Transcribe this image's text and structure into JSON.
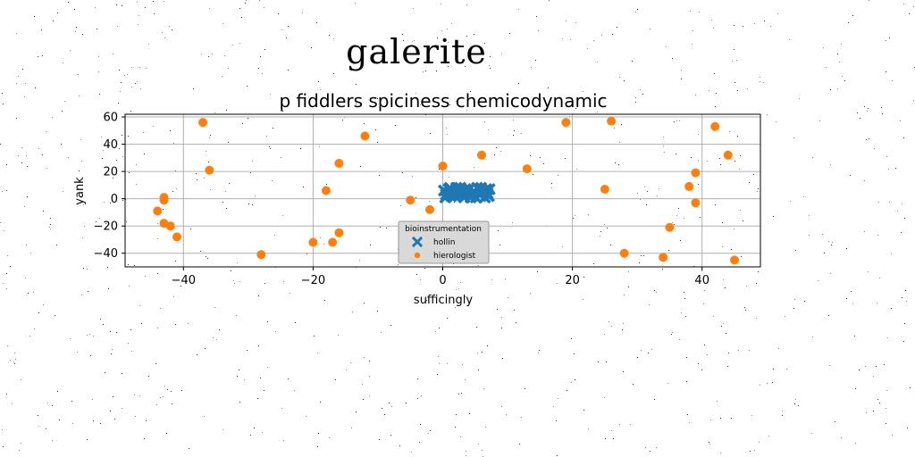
{
  "figure_title": "galerite",
  "chart_data": {
    "type": "scatter",
    "title": "p fiddlers spiciness chemicodynamic",
    "xlabel": "sufficingly",
    "ylabel": "yank",
    "xlim": [
      -49,
      49
    ],
    "ylim": [
      -50,
      62
    ],
    "xticks": [
      -40,
      -20,
      0,
      20,
      40
    ],
    "yticks": [
      -40,
      -20,
      0,
      20,
      40,
      60
    ],
    "grid": true,
    "legend": {
      "title": "bioinstrumentation",
      "placement": "lower-center"
    },
    "series": [
      {
        "name": "hollin",
        "marker": "x",
        "color": "#1f77b4",
        "points": [
          [
            0.2,
            6
          ],
          [
            0.5,
            3
          ],
          [
            0.9,
            7
          ],
          [
            1.3,
            2
          ],
          [
            1.7,
            5
          ],
          [
            2.1,
            8
          ],
          [
            2.5,
            3
          ],
          [
            2.9,
            6
          ],
          [
            3.3,
            1
          ],
          [
            3.7,
            4
          ],
          [
            4.1,
            7
          ],
          [
            4.5,
            2
          ],
          [
            4.9,
            5
          ],
          [
            5.3,
            8
          ],
          [
            5.7,
            3
          ],
          [
            6.1,
            6
          ],
          [
            6.5,
            1
          ],
          [
            6.9,
            4
          ],
          [
            7.2,
            7
          ],
          [
            0.4,
            1
          ],
          [
            1.1,
            8
          ],
          [
            1.9,
            2
          ],
          [
            2.7,
            8
          ],
          [
            3.5,
            7
          ],
          [
            4.3,
            1
          ],
          [
            5.1,
            1
          ],
          [
            5.9,
            8
          ],
          [
            6.7,
            7
          ],
          [
            7.1,
            2
          ],
          [
            1.5,
            5
          ],
          [
            3.1,
            4
          ],
          [
            4.7,
            4
          ],
          [
            6.3,
            5
          ],
          [
            0.8,
            4
          ],
          [
            2.3,
            5
          ]
        ]
      },
      {
        "name": "hierologist",
        "marker": "o",
        "color": "#ff7f0e",
        "points": [
          [
            -37,
            56
          ],
          [
            -36,
            21
          ],
          [
            -12,
            46
          ],
          [
            -16,
            26
          ],
          [
            -18,
            6
          ],
          [
            -16,
            -25
          ],
          [
            -17,
            -32
          ],
          [
            -20,
            -32
          ],
          [
            -28,
            -41
          ],
          [
            -41,
            -28
          ],
          [
            -42,
            -20
          ],
          [
            -43,
            -18
          ],
          [
            -44,
            -9
          ],
          [
            -43,
            1
          ],
          [
            -43,
            -1
          ],
          [
            -5,
            -1
          ],
          [
            -2,
            -8
          ],
          [
            0,
            24
          ],
          [
            6,
            32
          ],
          [
            13,
            22
          ],
          [
            19,
            56
          ],
          [
            26,
            57
          ],
          [
            25,
            7
          ],
          [
            28,
            -40
          ],
          [
            34,
            -43
          ],
          [
            35,
            -21
          ],
          [
            38,
            9
          ],
          [
            39,
            19
          ],
          [
            39,
            -3
          ],
          [
            42,
            53
          ],
          [
            44,
            32
          ],
          [
            45,
            -45
          ]
        ]
      }
    ]
  }
}
